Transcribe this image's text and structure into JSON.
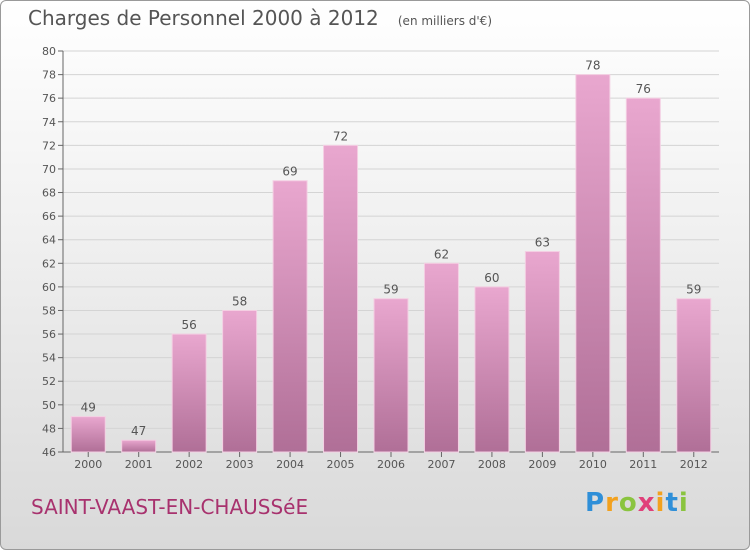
{
  "title": "Charges de Personnel 2000 à 2012",
  "subtitle": "(en milliers d'€)",
  "town": "SAINT-VAAST-EN-CHAUSSéE",
  "logo": {
    "letters": [
      "P",
      "r",
      "o",
      "x",
      "i",
      "t",
      "i"
    ],
    "colors": [
      "#2f8fd8",
      "#f2a11e",
      "#8ac43f",
      "#e0407a",
      "#f2a11e",
      "#2f8fd8",
      "#8ac43f"
    ]
  },
  "colors": {
    "bar_top": "#e9a7cf",
    "bar_bottom": "#b06f97",
    "text": "#555555",
    "town": "#a8326e"
  },
  "chart_data": {
    "type": "bar",
    "categories": [
      "2000",
      "2001",
      "2002",
      "2003",
      "2004",
      "2005",
      "2006",
      "2007",
      "2008",
      "2009",
      "2010",
      "2011",
      "2012"
    ],
    "values": [
      49,
      47,
      56,
      58,
      69,
      72,
      59,
      62,
      60,
      63,
      78,
      76,
      59
    ],
    "ylim": [
      46,
      80
    ],
    "yticks": [
      46,
      48,
      50,
      52,
      54,
      56,
      58,
      60,
      62,
      64,
      66,
      68,
      70,
      72,
      74,
      76,
      78,
      80
    ],
    "grid": true
  }
}
